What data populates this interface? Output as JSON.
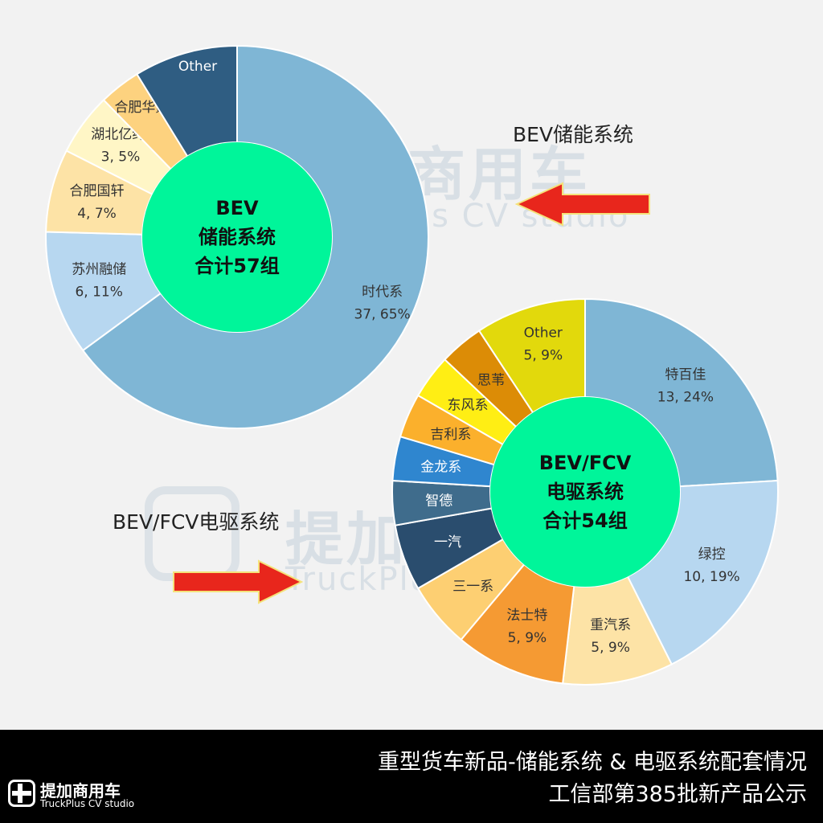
{
  "watermark": {
    "cn": "提加商用车",
    "en": "TruckPlus CV studio"
  },
  "labels": {
    "bev_arrow": "BEV储能系统",
    "fcv_arrow": "BEV/FCV电驱系统"
  },
  "footer": {
    "title_line1": "重型货车新品-储能系统 & 电驱系统配套情况",
    "title_line2": "工信部第385批新产品公示",
    "logo_cn": "提加商用车",
    "logo_en": "TruckPlus CV studio"
  },
  "colors": {
    "arrow": "#e8261c",
    "center": "#00f59a",
    "footer_bg": "#000000"
  },
  "chart_data": [
    {
      "type": "pie",
      "style": "donut",
      "center_label": [
        "BEV",
        "储能系统",
        "合计57组"
      ],
      "total": 57,
      "slices": [
        {
          "name": "时代系",
          "label": [
            "时代系",
            "37, 65%"
          ],
          "value": 37,
          "percent": 65,
          "color": "#7fb6d5"
        },
        {
          "name": "苏州融储",
          "label": [
            "苏州融储",
            "6, 11%"
          ],
          "value": 6,
          "percent": 11,
          "color": "#b7d7f0"
        },
        {
          "name": "合肥国轩",
          "label": [
            "合肥国轩",
            "4, 7%"
          ],
          "value": 4,
          "percent": 7,
          "color": "#fde3a6"
        },
        {
          "name": "湖北亿纬",
          "label": [
            "湖北亿纬,",
            "3, 5%"
          ],
          "value": 3,
          "percent": 5,
          "color": "#fff6c6"
        },
        {
          "name": "合肥华霆",
          "label": [
            "合肥华霆"
          ],
          "value": 2,
          "percent": 4,
          "color": "#fdd27f"
        },
        {
          "name": "Other",
          "label": [
            "Other"
          ],
          "value": 5,
          "percent": 9,
          "color": "#2f5d82",
          "light": true
        }
      ]
    },
    {
      "type": "pie",
      "style": "donut",
      "center_label": [
        "BEV/FCV",
        "电驱系统",
        "合计54组"
      ],
      "total": 54,
      "slices": [
        {
          "name": "特百佳",
          "label": [
            "特百佳",
            "13, 24%"
          ],
          "value": 13,
          "percent": 24,
          "color": "#7fb6d5"
        },
        {
          "name": "绿控",
          "label": [
            "绿控",
            "10, 19%"
          ],
          "value": 10,
          "percent": 19,
          "color": "#b7d7f0"
        },
        {
          "name": "重汽系",
          "label": [
            "重汽系",
            "5, 9%"
          ],
          "value": 5,
          "percent": 9,
          "color": "#fde3a6"
        },
        {
          "name": "法士特",
          "label": [
            "法士特",
            "5, 9%"
          ],
          "value": 5,
          "percent": 9,
          "color": "#f59a33"
        },
        {
          "name": "三一系",
          "label": [
            "三一系"
          ],
          "value": 3,
          "percent": 6,
          "color": "#fdcf72"
        },
        {
          "name": "一汽",
          "label": [
            "一汽"
          ],
          "value": 3,
          "percent": 6,
          "color": "#2a4d6e",
          "light": true
        },
        {
          "name": "智德",
          "label": [
            "智德"
          ],
          "value": 2,
          "percent": 4,
          "color": "#3f6c8c",
          "light": true
        },
        {
          "name": "金龙系",
          "label": [
            "金龙系"
          ],
          "value": 2,
          "percent": 4,
          "color": "#2f86cf",
          "light": true
        },
        {
          "name": "吉利系",
          "label": [
            "吉利系"
          ],
          "value": 2,
          "percent": 4,
          "color": "#fbb02c"
        },
        {
          "name": "东风系",
          "label": [
            "东风系"
          ],
          "value": 2,
          "percent": 4,
          "color": "#ffee14"
        },
        {
          "name": "思苇",
          "label": [
            "思苇"
          ],
          "value": 2,
          "percent": 4,
          "color": "#dc8c06"
        },
        {
          "name": "Other",
          "label": [
            "Other",
            "5, 9%"
          ],
          "value": 5,
          "percent": 9,
          "color": "#e2d90c"
        }
      ]
    }
  ]
}
